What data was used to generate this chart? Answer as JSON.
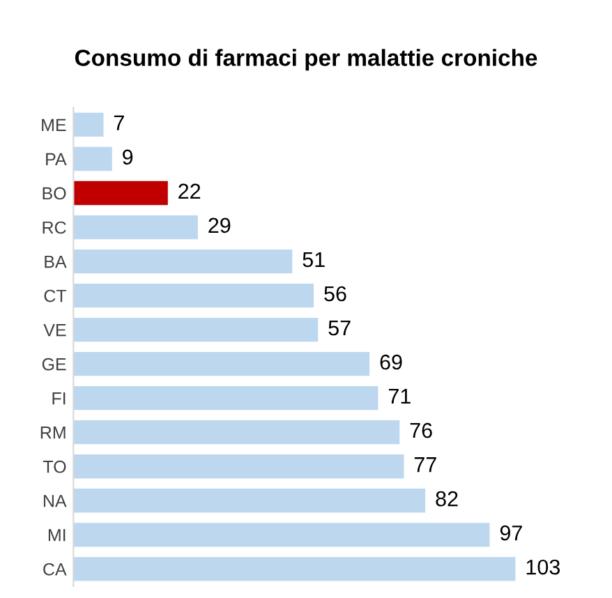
{
  "chart_data": {
    "type": "bar",
    "orientation": "horizontal",
    "title": "Consumo di farmaci per malattie croniche",
    "categories": [
      "ME",
      "PA",
      "BO",
      "RC",
      "BA",
      "CT",
      "VE",
      "GE",
      "FI",
      "RM",
      "TO",
      "NA",
      "MI",
      "CA"
    ],
    "values": [
      7,
      9,
      22,
      29,
      51,
      56,
      57,
      69,
      71,
      76,
      77,
      82,
      97,
      103
    ],
    "colors": [
      "#bdd7ee",
      "#bdd7ee",
      "#c00000",
      "#bdd7ee",
      "#bdd7ee",
      "#bdd7ee",
      "#bdd7ee",
      "#bdd7ee",
      "#bdd7ee",
      "#bdd7ee",
      "#bdd7ee",
      "#bdd7ee",
      "#bdd7ee",
      "#bdd7ee"
    ],
    "data_labels": true
  }
}
